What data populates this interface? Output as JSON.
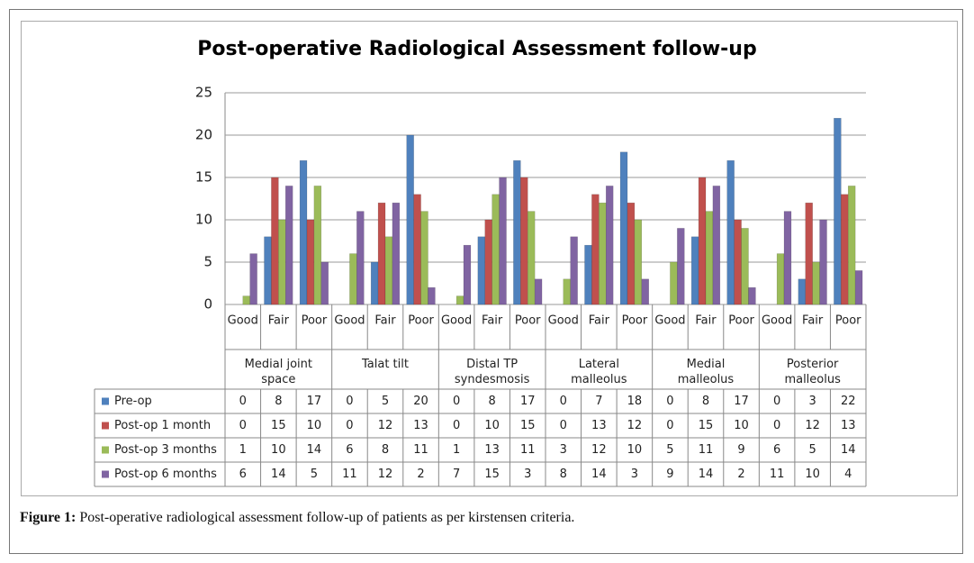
{
  "chart_data": {
    "type": "bar",
    "title": "Post-operative Radiological Assessment follow-up",
    "categories": [
      "Good",
      "Fair",
      "Poor",
      "Good",
      "Fair",
      "Poor",
      "Good",
      "Fair",
      "Poor",
      "Good",
      "Fair",
      "Poor",
      "Good",
      "Fair",
      "Poor",
      "Good",
      "Fair",
      "Poor"
    ],
    "groups": [
      "Medial joint space",
      "Talat tilt",
      "Distal TP syndesmosis",
      "Lateral malleolus",
      "Medial malleolus",
      "Posterior malleolus"
    ],
    "series": [
      {
        "name": "Pre-op",
        "color": "#4f81bd",
        "values": [
          0,
          8,
          17,
          0,
          5,
          20,
          0,
          8,
          17,
          0,
          7,
          18,
          0,
          8,
          17,
          0,
          3,
          22
        ]
      },
      {
        "name": "Post-op 1 month",
        "color": "#c0504d",
        "values": [
          0,
          15,
          10,
          0,
          12,
          13,
          0,
          10,
          15,
          0,
          13,
          12,
          0,
          15,
          10,
          0,
          12,
          13
        ]
      },
      {
        "name": "Post-op 3 months",
        "color": "#9bbb59",
        "values": [
          1,
          10,
          14,
          6,
          8,
          11,
          1,
          13,
          11,
          3,
          12,
          10,
          5,
          11,
          9,
          6,
          5,
          14
        ]
      },
      {
        "name": "Post-op 6 months",
        "color": "#8064a2",
        "values": [
          6,
          14,
          5,
          11,
          12,
          2,
          7,
          15,
          3,
          8,
          14,
          3,
          9,
          14,
          2,
          11,
          10,
          4
        ]
      }
    ],
    "ylim": [
      0,
      25
    ],
    "yticks": [
      0,
      5,
      10,
      15,
      20,
      25
    ],
    "grid": true,
    "caption_label": "Figure 1:",
    "caption": "Post-operative radiological assessment follow-up of patients as per kirstensen criteria."
  }
}
